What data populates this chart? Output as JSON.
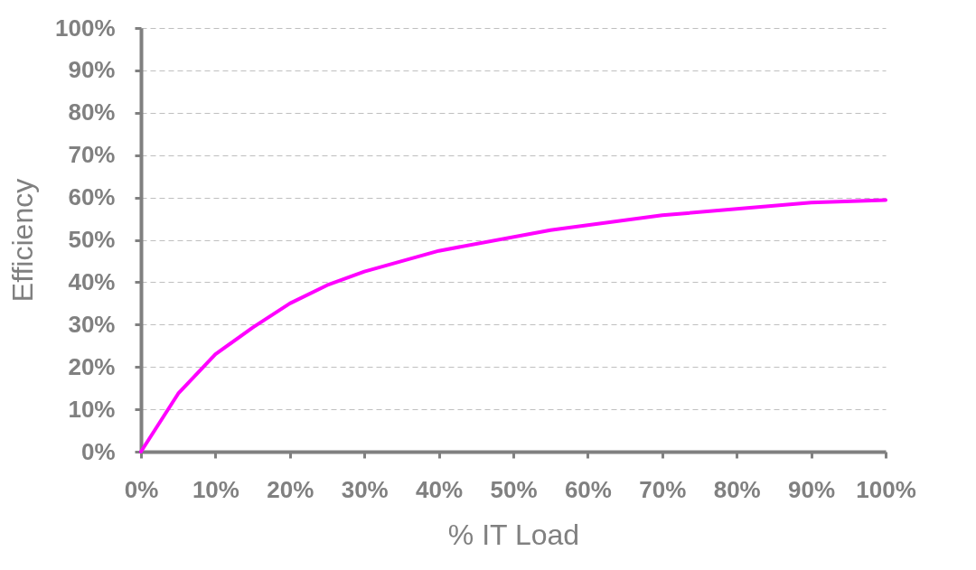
{
  "chart_data": {
    "type": "line",
    "xlabel": "% IT Load",
    "ylabel": "Efficiency",
    "x": [
      0,
      5,
      10,
      15,
      20,
      25,
      30,
      40,
      55,
      70,
      90,
      100
    ],
    "series": [
      {
        "color": "#ff00ff",
        "values": [
          0,
          13.7,
          23,
          29.3,
          35,
          39.3,
          42.5,
          47.4,
          52.3,
          55.8,
          58.8,
          59.4
        ]
      }
    ],
    "xlim": [
      0,
      100
    ],
    "ylim": [
      0,
      100
    ],
    "xticks": [
      {
        "value": 0,
        "label": "0%"
      },
      {
        "value": 10,
        "label": "10%"
      },
      {
        "value": 20,
        "label": "20%"
      },
      {
        "value": 30,
        "label": "30%"
      },
      {
        "value": 40,
        "label": "40%"
      },
      {
        "value": 50,
        "label": "50%"
      },
      {
        "value": 60,
        "label": "60%"
      },
      {
        "value": 70,
        "label": "70%"
      },
      {
        "value": 80,
        "label": "80%"
      },
      {
        "value": 90,
        "label": "90%"
      },
      {
        "value": 100,
        "label": "100%"
      }
    ],
    "yticks": [
      {
        "value": 0,
        "label": "0%"
      },
      {
        "value": 10,
        "label": "10%"
      },
      {
        "value": 20,
        "label": "20%"
      },
      {
        "value": 30,
        "label": "30%"
      },
      {
        "value": 40,
        "label": "40%"
      },
      {
        "value": 50,
        "label": "50%"
      },
      {
        "value": 60,
        "label": "60%"
      },
      {
        "value": 70,
        "label": "70%"
      },
      {
        "value": 80,
        "label": "80%"
      },
      {
        "value": 90,
        "label": "90%"
      },
      {
        "value": 100,
        "label": "100%"
      }
    ],
    "grid": "y",
    "marker": "none",
    "line_style": "solid"
  }
}
